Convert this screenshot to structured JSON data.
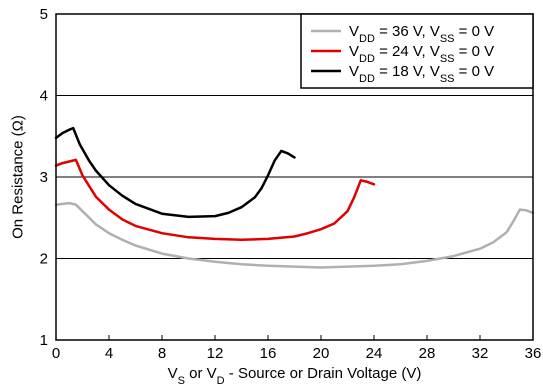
{
  "chart_data": {
    "type": "line",
    "title": "",
    "xlim": [
      0,
      36
    ],
    "ylim": [
      1,
      5
    ],
    "x_ticks": [
      0,
      4,
      8,
      12,
      16,
      20,
      24,
      28,
      32,
      36
    ],
    "y_ticks": [
      1,
      2,
      3,
      4,
      5
    ],
    "xlabel": {
      "parts": [
        {
          "text": "V",
          "sub": false
        },
        {
          "text": "S",
          "sub": true
        },
        {
          "text": " or V",
          "sub": false
        },
        {
          "text": "D",
          "sub": true
        },
        {
          "text": " - Source or Drain Voltage (V)",
          "sub": false
        }
      ]
    },
    "ylabel": "On Resistance (Ω)",
    "grid": "horizontal",
    "legend": {
      "position": "top-right"
    },
    "series": [
      {
        "color": "#b0b0b0",
        "label_parts": [
          {
            "text": "V",
            "sub": false
          },
          {
            "text": "DD",
            "sub": true
          },
          {
            "text": " = 36 V, V",
            "sub": false
          },
          {
            "text": "SS",
            "sub": true
          },
          {
            "text": " = 0 V",
            "sub": false
          }
        ],
        "x": [
          0,
          0.5,
          1,
          1.5,
          2,
          3,
          4,
          5,
          6,
          8,
          10,
          12,
          14,
          16,
          18,
          20,
          22,
          24,
          26,
          28,
          30,
          32,
          33,
          34,
          34.5,
          35,
          35.5,
          36
        ],
        "y": [
          2.66,
          2.67,
          2.68,
          2.66,
          2.58,
          2.42,
          2.31,
          2.23,
          2.16,
          2.06,
          2.0,
          1.96,
          1.93,
          1.91,
          1.9,
          1.89,
          1.9,
          1.91,
          1.93,
          1.97,
          2.03,
          2.12,
          2.2,
          2.32,
          2.45,
          2.6,
          2.59,
          2.56
        ]
      },
      {
        "color": "#e00000",
        "label_parts": [
          {
            "text": "V",
            "sub": false
          },
          {
            "text": "DD",
            "sub": true
          },
          {
            "text": " = 24 V, V",
            "sub": false
          },
          {
            "text": "SS",
            "sub": true
          },
          {
            "text": " = 0 V",
            "sub": false
          }
        ],
        "x": [
          0,
          0.5,
          1,
          1.5,
          2,
          3,
          4,
          5,
          6,
          8,
          10,
          12,
          14,
          16,
          18,
          19,
          20,
          21,
          22,
          22.5,
          23,
          23.5,
          24
        ],
        "y": [
          3.14,
          3.17,
          3.19,
          3.21,
          3.02,
          2.76,
          2.6,
          2.48,
          2.4,
          2.31,
          2.26,
          2.24,
          2.23,
          2.24,
          2.27,
          2.31,
          2.36,
          2.43,
          2.58,
          2.75,
          2.96,
          2.94,
          2.91
        ]
      },
      {
        "color": "#000000",
        "label_parts": [
          {
            "text": "V",
            "sub": false
          },
          {
            "text": "DD",
            "sub": true
          },
          {
            "text": " = 18 V, V",
            "sub": false
          },
          {
            "text": "SS",
            "sub": true
          },
          {
            "text": " = 0 V",
            "sub": false
          }
        ],
        "x": [
          0,
          0.5,
          1,
          1.3,
          1.8,
          2.5,
          3,
          4,
          5,
          6,
          8,
          10,
          12,
          13,
          14,
          15,
          15.5,
          16,
          16.5,
          17,
          17.5,
          18
        ],
        "y": [
          3.48,
          3.54,
          3.58,
          3.6,
          3.4,
          3.2,
          3.08,
          2.9,
          2.77,
          2.67,
          2.55,
          2.51,
          2.52,
          2.56,
          2.63,
          2.75,
          2.86,
          3.02,
          3.2,
          3.32,
          3.29,
          3.24
        ]
      }
    ]
  }
}
